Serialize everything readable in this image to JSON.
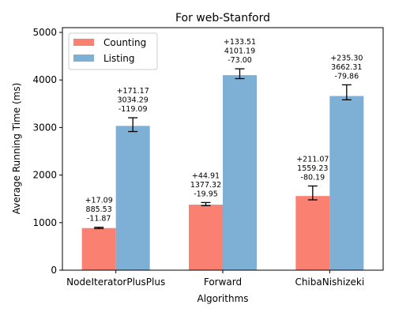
{
  "chart_data": {
    "type": "bar",
    "title": "For web-Stanford",
    "xlabel": "Algorithms",
    "ylabel": "Average Running Time (ms)",
    "categories": [
      "NodeIteratorPlusPlus",
      "Forward",
      "ChibaNishizeki"
    ],
    "ylim": [
      0,
      5100
    ],
    "yticks": [
      0,
      1000,
      2000,
      3000,
      4000,
      5000
    ],
    "legend_position": "top-left",
    "grid": false,
    "series": [
      {
        "name": "Counting",
        "color": "#fa8072",
        "values": [
          885.53,
          1377.32,
          1559.23
        ],
        "err_plus": [
          17.09,
          44.91,
          211.07
        ],
        "err_minus": [
          11.87,
          19.95,
          80.19
        ],
        "labels": [
          [
            "+17.09",
            "885.53",
            "-11.87"
          ],
          [
            "+44.91",
            "1377.32",
            "-19.95"
          ],
          [
            "+211.07",
            "1559.23",
            "-80.19"
          ]
        ]
      },
      {
        "name": "Listing",
        "color": "#7eb0d5",
        "values": [
          3034.29,
          4101.19,
          3662.31
        ],
        "err_plus": [
          171.17,
          133.51,
          235.3
        ],
        "err_minus": [
          119.09,
          73.0,
          79.86
        ],
        "labels": [
          [
            "+171.17",
            "3034.29",
            "-119.09"
          ],
          [
            "+133.51",
            "4101.19",
            "-73.00"
          ],
          [
            "+235.30",
            "3662.31",
            "-79.86"
          ]
        ]
      }
    ]
  }
}
